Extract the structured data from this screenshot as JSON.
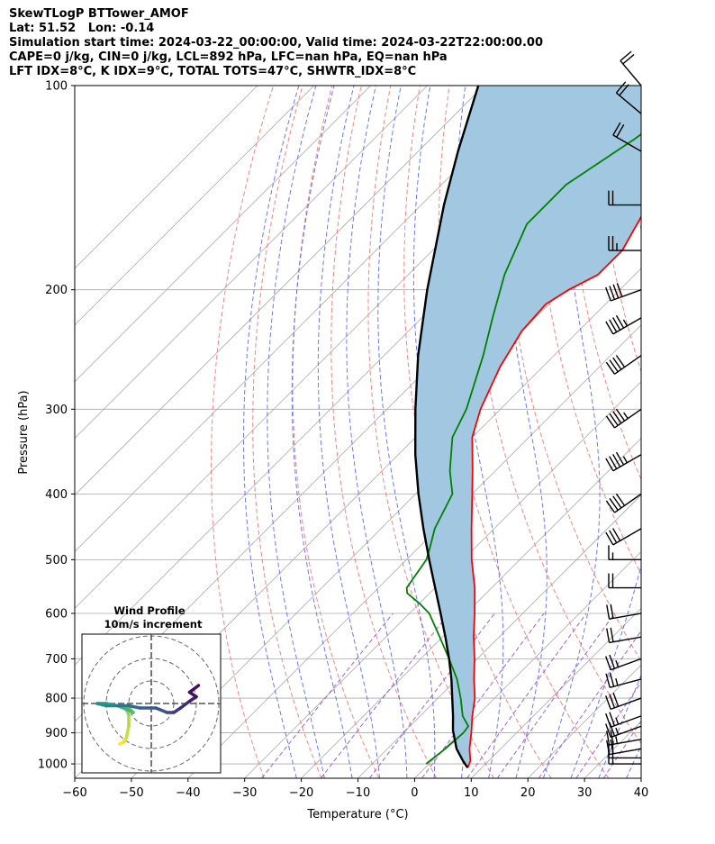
{
  "header": {
    "line1": "SkewTLogP BTTower_AMOF",
    "line2": "Lat: 51.52   Lon: -0.14",
    "line3": "Simulation start time: 2024-03-22_00:00:00, Valid time: 2024-03-22T22:00:00.00",
    "line4": "CAPE=0 j/kg, CIN=0 j/kg, LCL=892 hPa, LFC=nan hPa, EQ=nan hPa",
    "line5": "LFT IDX=8°C, K IDX=9°C, TOTAL TOTS=47°C, SHWTR_IDX=8°C"
  },
  "chart_data": {
    "type": "skew-t",
    "xlabel": "Temperature (°C)",
    "ylabel": "Pressure (hPa)",
    "xlim": [
      -60,
      40
    ],
    "ylim": [
      1050,
      100
    ],
    "x_ticks": [
      -60,
      -50,
      -40,
      -30,
      -20,
      -10,
      0,
      10,
      20,
      30,
      40
    ],
    "x_tick_labels": [
      "−60",
      "−50",
      "−40",
      "−30",
      "−20",
      "−10",
      "0",
      "10",
      "20",
      "30",
      "40"
    ],
    "y_ticks": [
      1000,
      900,
      800,
      700,
      600,
      500,
      400,
      300,
      200,
      100
    ],
    "y_tick_labels": [
      "1000",
      "900",
      "800",
      "700",
      "600",
      "500",
      "400",
      "300",
      "200",
      "100"
    ],
    "grid": true,
    "colors": {
      "temperature": "#ff0000",
      "dewpoint": "#008000",
      "parcel": "#000000",
      "shading": "#a2c7e1",
      "dry_adiabats": "#ff6b6b",
      "moist_adiabats": "#5060ff",
      "mixing_ratio": "#9b4fd0",
      "isotherms": "#aaaaaa"
    },
    "temperature_profile": [
      {
        "p": 1013,
        "t": 7.5
      },
      {
        "p": 990,
        "t": 6.8
      },
      {
        "p": 950,
        "t": 4.5
      },
      {
        "p": 900,
        "t": 2.0
      },
      {
        "p": 850,
        "t": -0.8
      },
      {
        "p": 800,
        "t": -3.5
      },
      {
        "p": 750,
        "t": -7.0
      },
      {
        "p": 700,
        "t": -10.5
      },
      {
        "p": 650,
        "t": -14.5
      },
      {
        "p": 600,
        "t": -18.5
      },
      {
        "p": 550,
        "t": -23.0
      },
      {
        "p": 500,
        "t": -28.5
      },
      {
        "p": 450,
        "t": -34.0
      },
      {
        "p": 400,
        "t": -40.0
      },
      {
        "p": 370,
        "t": -44.0
      },
      {
        "p": 330,
        "t": -50.0
      },
      {
        "p": 300,
        "t": -53.5
      },
      {
        "p": 260,
        "t": -57.5
      },
      {
        "p": 230,
        "t": -60.0
      },
      {
        "p": 210,
        "t": -60.5
      },
      {
        "p": 200,
        "t": -59.0
      },
      {
        "p": 190,
        "t": -56.5
      },
      {
        "p": 175,
        "t": -56.5
      },
      {
        "p": 150,
        "t": -60.0
      },
      {
        "p": 125,
        "t": -64.5
      },
      {
        "p": 110,
        "t": -68.5
      },
      {
        "p": 100,
        "t": -71.0
      }
    ],
    "dewpoint_profile": [
      {
        "p": 1000,
        "t": -0.5
      },
      {
        "p": 950,
        "t": 0.2
      },
      {
        "p": 900,
        "t": 0.6
      },
      {
        "p": 880,
        "t": 0.3
      },
      {
        "p": 850,
        "t": -2.5
      },
      {
        "p": 800,
        "t": -6.0
      },
      {
        "p": 750,
        "t": -10.0
      },
      {
        "p": 700,
        "t": -15.0
      },
      {
        "p": 650,
        "t": -20.5
      },
      {
        "p": 600,
        "t": -26.5
      },
      {
        "p": 580,
        "t": -30.0
      },
      {
        "p": 560,
        "t": -34.0
      },
      {
        "p": 550,
        "t": -35.0
      },
      {
        "p": 500,
        "t": -36.5
      },
      {
        "p": 480,
        "t": -38.0
      },
      {
        "p": 450,
        "t": -40.5
      },
      {
        "p": 400,
        "t": -43.5
      },
      {
        "p": 370,
        "t": -48.0
      },
      {
        "p": 330,
        "t": -53.5
      },
      {
        "p": 300,
        "t": -56.0
      },
      {
        "p": 250,
        "t": -62.5
      },
      {
        "p": 220,
        "t": -67.5
      },
      {
        "p": 190,
        "t": -73.0
      },
      {
        "p": 160,
        "t": -78.0
      },
      {
        "p": 140,
        "t": -78.0
      },
      {
        "p": 120,
        "t": -74.0
      },
      {
        "p": 100,
        "t": -70.5
      }
    ],
    "parcel_profile": [
      {
        "p": 1013,
        "t": 7.5
      },
      {
        "p": 990,
        "t": 5.5
      },
      {
        "p": 950,
        "t": 2.2
      },
      {
        "p": 892,
        "t": -1.7
      },
      {
        "p": 850,
        "t": -4.2
      },
      {
        "p": 800,
        "t": -7.5
      },
      {
        "p": 750,
        "t": -11.0
      },
      {
        "p": 700,
        "t": -15.0
      },
      {
        "p": 650,
        "t": -19.5
      },
      {
        "p": 600,
        "t": -24.5
      },
      {
        "p": 550,
        "t": -30.0
      },
      {
        "p": 500,
        "t": -36.0
      },
      {
        "p": 450,
        "t": -42.5
      },
      {
        "p": 400,
        "t": -49.5
      },
      {
        "p": 350,
        "t": -57.0
      },
      {
        "p": 300,
        "t": -65.0
      },
      {
        "p": 250,
        "t": -74.0
      },
      {
        "p": 200,
        "t": -84.0
      },
      {
        "p": 150,
        "t": -96.0
      },
      {
        "p": 125,
        "t": -103.0
      },
      {
        "p": 100,
        "t": -111.0
      }
    ],
    "wind_barbs": [
      {
        "p": 1000,
        "speed_kt": 15,
        "dir": 270
      },
      {
        "p": 980,
        "speed_kt": 20,
        "dir": 270
      },
      {
        "p": 950,
        "speed_kt": 20,
        "dir": 260
      },
      {
        "p": 920,
        "speed_kt": 25,
        "dir": 260
      },
      {
        "p": 880,
        "speed_kt": 25,
        "dir": 250
      },
      {
        "p": 850,
        "speed_kt": 25,
        "dir": 250
      },
      {
        "p": 800,
        "speed_kt": 30,
        "dir": 250
      },
      {
        "p": 750,
        "speed_kt": 25,
        "dir": 255
      },
      {
        "p": 700,
        "speed_kt": 25,
        "dir": 250
      },
      {
        "p": 650,
        "speed_kt": 20,
        "dir": 260
      },
      {
        "p": 600,
        "speed_kt": 20,
        "dir": 260
      },
      {
        "p": 550,
        "speed_kt": 20,
        "dir": 270
      },
      {
        "p": 500,
        "speed_kt": 15,
        "dir": 270
      },
      {
        "p": 450,
        "speed_kt": 30,
        "dir": 240
      },
      {
        "p": 400,
        "speed_kt": 40,
        "dir": 235
      },
      {
        "p": 350,
        "speed_kt": 45,
        "dir": 240
      },
      {
        "p": 300,
        "speed_kt": 45,
        "dir": 235
      },
      {
        "p": 250,
        "speed_kt": 40,
        "dir": 235
      },
      {
        "p": 220,
        "speed_kt": 45,
        "dir": 240
      },
      {
        "p": 200,
        "speed_kt": 40,
        "dir": 250
      },
      {
        "p": 175,
        "speed_kt": 25,
        "dir": 270
      },
      {
        "p": 150,
        "speed_kt": 20,
        "dir": 270
      },
      {
        "p": 125,
        "speed_kt": 20,
        "dir": 300
      },
      {
        "p": 110,
        "speed_kt": 20,
        "dir": 310
      },
      {
        "p": 100,
        "speed_kt": 20,
        "dir": 320
      }
    ],
    "hodograph": {
      "title": "Wind Profile",
      "subtitle": "10m/s increment",
      "rings_ms": [
        10,
        20,
        30
      ],
      "points": [
        {
          "u": -14,
          "v": -18,
          "level": 0.0
        },
        {
          "u": -12,
          "v": -17,
          "level": 0.04
        },
        {
          "u": -11,
          "v": -15,
          "level": 0.08
        },
        {
          "u": -10,
          "v": -10,
          "level": 0.12
        },
        {
          "u": -10,
          "v": -5,
          "level": 0.16
        },
        {
          "u": -12,
          "v": -1,
          "level": 0.2
        },
        {
          "u": -10,
          "v": -2,
          "level": 0.25
        },
        {
          "u": -8,
          "v": -4,
          "level": 0.3
        },
        {
          "u": -10,
          "v": -3,
          "level": 0.35
        },
        {
          "u": -15,
          "v": -1,
          "level": 0.4
        },
        {
          "u": -20,
          "v": 0,
          "level": 0.45
        },
        {
          "u": -24,
          "v": 0,
          "level": 0.5
        },
        {
          "u": -20,
          "v": -1,
          "level": 0.55
        },
        {
          "u": -15,
          "v": -1,
          "level": 0.6
        },
        {
          "u": -10,
          "v": -1,
          "level": 0.65
        },
        {
          "u": -5,
          "v": -2,
          "level": 0.7
        },
        {
          "u": 2,
          "v": -2,
          "level": 0.74
        },
        {
          "u": 7,
          "v": -4,
          "level": 0.78
        },
        {
          "u": 10,
          "v": -4,
          "level": 0.82
        },
        {
          "u": 13,
          "v": -2,
          "level": 0.86
        },
        {
          "u": 17,
          "v": 1,
          "level": 0.9
        },
        {
          "u": 20,
          "v": 3,
          "level": 0.94
        },
        {
          "u": 17,
          "v": 5,
          "level": 0.96
        },
        {
          "u": 21,
          "v": 8,
          "level": 1.0
        }
      ]
    }
  }
}
